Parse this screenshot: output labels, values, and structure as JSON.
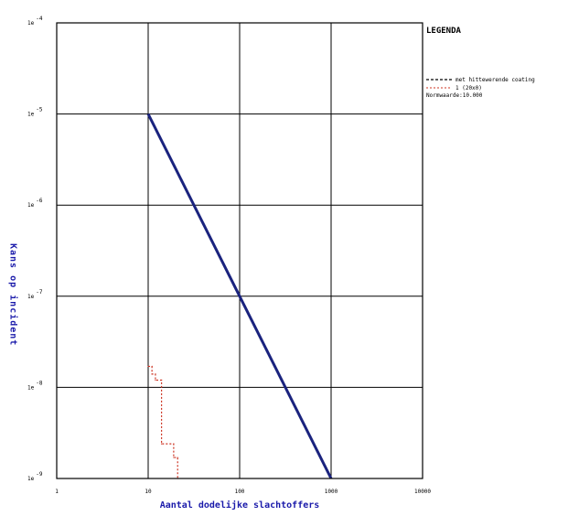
{
  "chart_data": {
    "type": "line",
    "xscale": "log",
    "yscale": "log",
    "xlim": [
      1,
      10000
    ],
    "ylim": [
      1e-09,
      0.0001
    ],
    "grid": true,
    "xlabel": "Aantal dodelijke slachtoffers",
    "ylabel": "Kans op incident",
    "x_tick_values": [
      1,
      10,
      100,
      1000,
      10000
    ],
    "x_tick_labels": [
      "1",
      "10",
      "100",
      "1000",
      "10000"
    ],
    "y_tick_values": [
      1e-09,
      1e-08,
      1e-07,
      1e-06,
      1e-05,
      0.0001
    ],
    "y_tick_labels": [
      "1e-9",
      "1e-8",
      "1e-7",
      "1e-6",
      "1e-5",
      "1e-4"
    ],
    "legend": {
      "title": "LEGENDA",
      "placement": "top-right",
      "entries": [
        {
          "label": "met hittewerende coating",
          "color": "#000000",
          "dash": "dashed"
        },
        {
          "label": "1 (20x0)",
          "color": "#cc3322",
          "dash": "dotted"
        },
        {
          "label": "Normwaarde:10.000",
          "color": "",
          "dash": "none"
        }
      ]
    },
    "series": [
      {
        "role": "norm",
        "color": "#1a237e",
        "x": [
          10,
          100,
          1000
        ],
        "y": [
          1e-05,
          1e-07,
          1e-09
        ]
      },
      {
        "name": "1 (20x0)",
        "color": "#cc3322",
        "x": [
          10,
          11,
          11,
          12,
          12,
          14,
          14,
          19,
          19,
          21,
          21
        ],
        "y": [
          1.7e-08,
          1.7e-08,
          1.4e-08,
          1.4e-08,
          1.2e-08,
          1.2e-08,
          2.4e-09,
          2.4e-09,
          1.7e-09,
          1.7e-09,
          1e-09
        ]
      }
    ]
  }
}
